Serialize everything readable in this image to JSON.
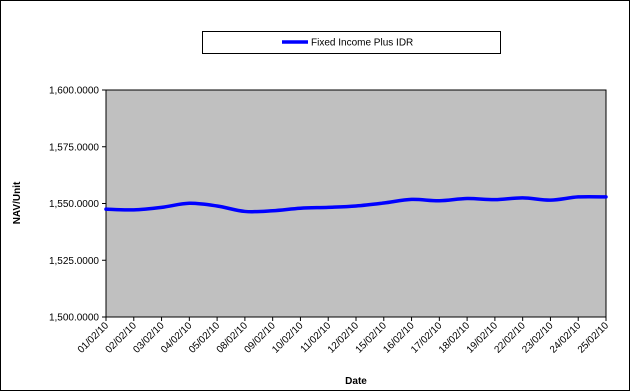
{
  "chart_data": {
    "type": "line",
    "title": "",
    "xlabel": "Date",
    "ylabel": "NAV/Unit",
    "ylim": [
      1500,
      1600
    ],
    "y_tick_labels": [
      "1,500.0000",
      "1,525.0000",
      "1,550.0000",
      "1,575.0000",
      "1,600.0000"
    ],
    "y_ticks": [
      1500,
      1525,
      1550,
      1575,
      1600
    ],
    "categories": [
      "01/02/10",
      "02/02/10",
      "03/02/10",
      "04/02/10",
      "05/02/10",
      "08/02/10",
      "09/02/10",
      "10/02/10",
      "11/02/10",
      "12/02/10",
      "15/02/10",
      "16/02/10",
      "17/02/10",
      "18/02/10",
      "19/02/10",
      "22/02/10",
      "23/02/10",
      "24/02/10",
      "25/02/10"
    ],
    "series": [
      {
        "name": "Fixed Income Plus IDR",
        "color": "#0000ff",
        "values": [
          1547.5,
          1547.2,
          1548.3,
          1550.1,
          1548.9,
          1546.5,
          1546.8,
          1547.9,
          1548.3,
          1548.9,
          1550.2,
          1551.8,
          1551.2,
          1552.2,
          1551.7,
          1552.5,
          1551.5,
          1552.9,
          1552.9
        ]
      }
    ],
    "grid": false,
    "legend_position": "top",
    "plot_background": "#c0c0c0"
  }
}
